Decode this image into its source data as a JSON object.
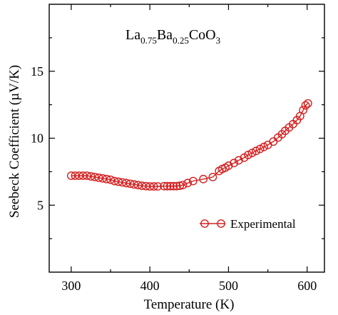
{
  "chart_data": {
    "type": "line",
    "xlabel": "Temperature (K)",
    "ylabel": "Seebeck Coefficient (µV/K)",
    "xlim": [
      272,
      622
    ],
    "ylim": [
      0,
      20
    ],
    "xticks": [
      300,
      400,
      500,
      600
    ],
    "yticks": [
      5,
      10,
      15
    ],
    "x_tick_labels": [
      "300",
      "400",
      "500",
      "600"
    ],
    "y_tick_labels": [
      "5",
      "10",
      "15"
    ],
    "annotation": {
      "base": [
        "La",
        "Ba",
        "CoO"
      ],
      "subscripts": [
        "0.75",
        "0.25",
        "3"
      ]
    },
    "legend": {
      "placement": "lower-right",
      "label": "Experimental"
    },
    "grid": false,
    "colors": {
      "series": "#d42020",
      "axis": "#000000"
    },
    "series": [
      {
        "name": "Experimental",
        "marker": "open-circle",
        "x": [
          300,
          305,
          310,
          315,
          320,
          325,
          330,
          335,
          340,
          345,
          350,
          355,
          360,
          365,
          370,
          375,
          380,
          385,
          390,
          395,
          400,
          405,
          410,
          418,
          422,
          426,
          430,
          434,
          438,
          442,
          448,
          455,
          468,
          480,
          488,
          492,
          496,
          500,
          507,
          513,
          520,
          525,
          530,
          535,
          540,
          545,
          550,
          557,
          563,
          568,
          572,
          577,
          582,
          587,
          591,
          595,
          598,
          601
        ],
        "values": [
          7.2,
          7.2,
          7.2,
          7.2,
          7.2,
          7.15,
          7.1,
          7.05,
          7.0,
          6.95,
          6.9,
          6.8,
          6.75,
          6.7,
          6.65,
          6.6,
          6.55,
          6.5,
          6.45,
          6.42,
          6.4,
          6.4,
          6.4,
          6.42,
          6.42,
          6.42,
          6.42,
          6.42,
          6.45,
          6.5,
          6.65,
          6.8,
          6.95,
          7.1,
          7.55,
          7.7,
          7.8,
          7.95,
          8.15,
          8.35,
          8.55,
          8.75,
          8.9,
          9.05,
          9.2,
          9.35,
          9.5,
          9.75,
          10.05,
          10.3,
          10.55,
          10.8,
          11.05,
          11.35,
          11.65,
          12.1,
          12.45,
          12.6
        ]
      }
    ]
  }
}
